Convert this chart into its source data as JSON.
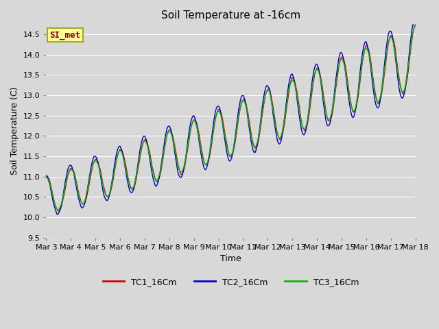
{
  "title": "Soil Temperature at -16cm",
  "xlabel": "Time",
  "ylabel": "Soil Temperature (C)",
  "ylim": [
    9.5,
    14.75
  ],
  "xlim": [
    0,
    15
  ],
  "background_color": "#d8d8d8",
  "plot_bg_color": "#d8d8d8",
  "grid_color": "#ffffff",
  "line_colors": [
    "#cc0000",
    "#0000cc",
    "#00bb00"
  ],
  "line_labels": [
    "TC1_16Cm",
    "TC2_16Cm",
    "TC3_16Cm"
  ],
  "annotation_text": "SI_met",
  "annotation_bg": "#ffff99",
  "annotation_border": "#999900",
  "annotation_text_color": "#880000",
  "title_fontsize": 11,
  "axis_fontsize": 9,
  "tick_fontsize": 8,
  "legend_fontsize": 9,
  "x_tick_labels": [
    "Mar 3",
    "Mar 4",
    "Mar 5",
    "Mar 6",
    "Mar 7",
    "Mar 8",
    "Mar 9",
    "Mar 10",
    "Mar 11",
    "Mar 12",
    "Mar 13",
    "Mar 14",
    "Mar 15",
    "Mar 16",
    "Mar 17",
    "Mar 18"
  ],
  "n_points": 720
}
